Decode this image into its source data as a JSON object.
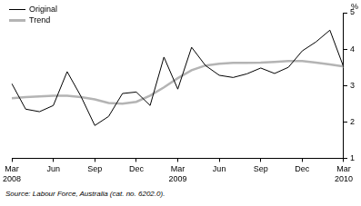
{
  "chart_data": {
    "type": "line",
    "y_label": "%",
    "source": "Source: Labour Force, Australia (cat. no. 6202.0).",
    "categories": [
      "Mar 2008",
      null,
      null,
      "Jun",
      null,
      null,
      "Sep",
      null,
      null,
      "Dec",
      null,
      null,
      "Mar 2009",
      null,
      null,
      "Jun",
      null,
      null,
      "Sep",
      null,
      null,
      "Dec",
      null,
      null,
      "Mar 2010"
    ],
    "series": [
      {
        "name": "Original",
        "color": "#000000",
        "values": [
          3.05,
          2.35,
          2.28,
          2.45,
          3.38,
          2.7,
          1.9,
          2.15,
          2.78,
          2.82,
          2.45,
          3.78,
          2.9,
          4.05,
          3.55,
          3.28,
          3.22,
          3.32,
          3.48,
          3.33,
          3.5,
          3.95,
          4.2,
          4.52,
          3.5
        ]
      },
      {
        "name": "Trend",
        "color": "#b4b4b4",
        "values": [
          2.65,
          2.68,
          2.7,
          2.72,
          2.72,
          2.68,
          2.62,
          2.52,
          2.5,
          2.55,
          2.72,
          2.95,
          3.2,
          3.42,
          3.55,
          3.6,
          3.62,
          3.62,
          3.63,
          3.65,
          3.67,
          3.67,
          3.63,
          3.58,
          3.52
        ]
      }
    ],
    "ylim": [
      1,
      5
    ],
    "yticks": [
      1,
      2,
      3,
      4,
      5
    ],
    "grid": false,
    "legend": "top-left"
  }
}
